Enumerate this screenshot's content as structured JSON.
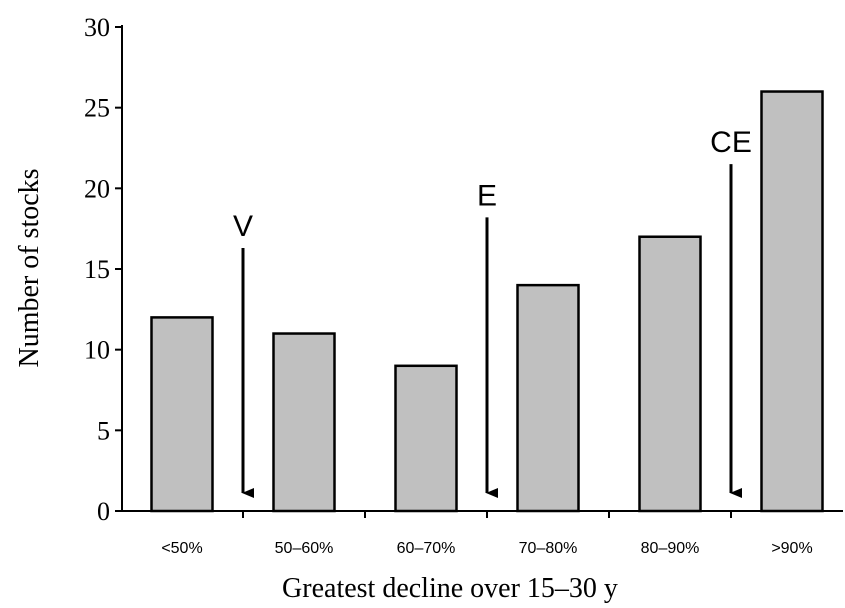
{
  "chart_data": {
    "type": "bar",
    "categories": [
      "<50%",
      "50–60%",
      "60–70%",
      "70–80%",
      "80–90%",
      ">90%"
    ],
    "values": [
      12,
      11,
      9,
      14,
      17,
      26
    ],
    "xlabel": "Greatest decline over 15–30 y",
    "ylabel": "Number of stocks",
    "ylim": [
      0,
      30
    ],
    "yticks": [
      0,
      5,
      10,
      15,
      20,
      25,
      30
    ],
    "grid": false,
    "bar_color": "#c0c0c0",
    "annotations": [
      {
        "label": "V",
        "boundary": "between <50% and 50–60%",
        "arrow": "down"
      },
      {
        "label": "E",
        "boundary": "between 60–70% and 70–80%",
        "arrow": "down"
      },
      {
        "label": "CE",
        "boundary": "between 80–90% and >90%",
        "arrow": "down"
      }
    ]
  }
}
